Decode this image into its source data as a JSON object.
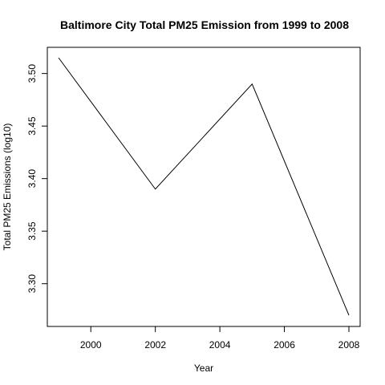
{
  "chart_data": {
    "type": "line",
    "title": "Baltimore City Total PM25 Emission from 1999 to 2008",
    "xlabel": "Year",
    "ylabel": "Total PM25 Emissions (log10)",
    "x": [
      1999,
      2002,
      2005,
      2008
    ],
    "series": [
      {
        "name": "Total PM25 Emissions (log10)",
        "values": [
          3.515,
          3.39,
          3.49,
          3.27
        ]
      }
    ],
    "xlim": [
      1999,
      2008
    ],
    "ylim": [
      3.27,
      3.515
    ],
    "xticks": [
      2000,
      2002,
      2004,
      2006,
      2008
    ],
    "xtick_labels": [
      "2000",
      "2002",
      "2004",
      "2006",
      "2008"
    ],
    "yticks": [
      3.3,
      3.35,
      3.4,
      3.45,
      3.5
    ],
    "ytick_labels": [
      "3.30",
      "3.35",
      "3.40",
      "3.45",
      "3.50"
    ],
    "grid": false,
    "colors": {
      "line": "#000000",
      "axis": "#000000",
      "background": "#ffffff"
    }
  }
}
